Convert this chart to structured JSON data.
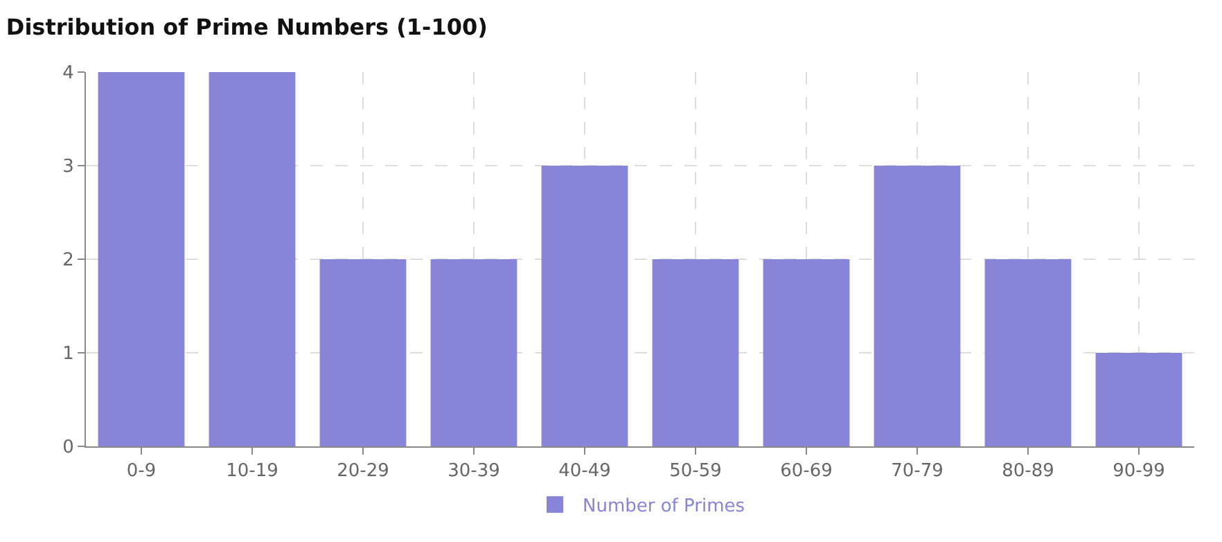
{
  "chart_data": {
    "type": "bar",
    "title": "Distribution of Prime Numbers (1-100)",
    "categories": [
      "0-9",
      "10-19",
      "20-29",
      "30-39",
      "40-49",
      "50-59",
      "60-69",
      "70-79",
      "80-89",
      "90-99"
    ],
    "series": [
      {
        "name": "Number of Primes",
        "color": "#8884d8",
        "values": [
          4,
          4,
          2,
          2,
          3,
          2,
          2,
          3,
          2,
          1
        ]
      }
    ],
    "ylim": [
      0,
      4
    ],
    "yticks": [
      0,
      1,
      2,
      3,
      4
    ],
    "grid": true,
    "legend": "bottom"
  }
}
